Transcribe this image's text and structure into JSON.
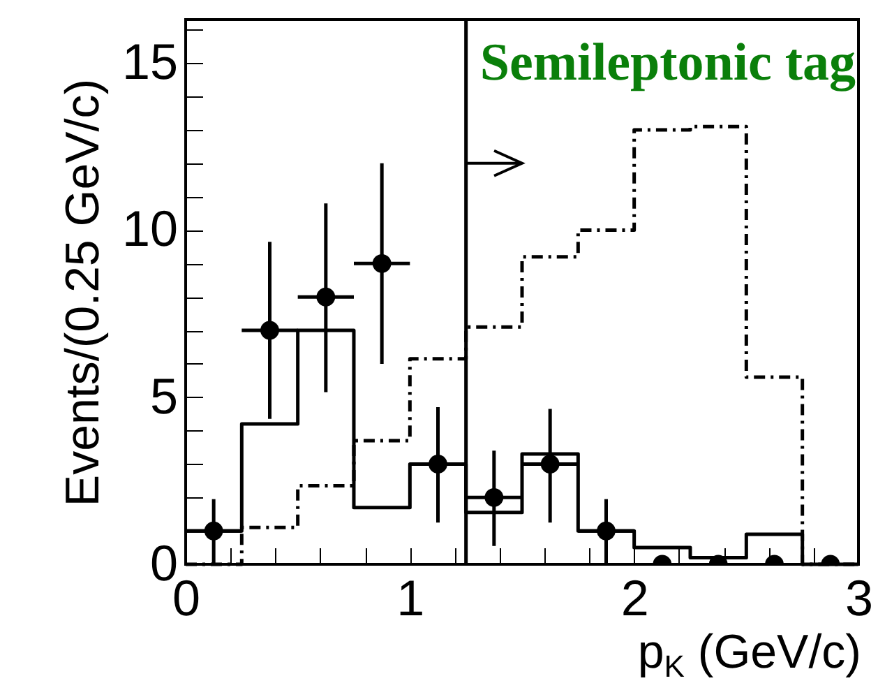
{
  "chart_data": {
    "type": "histogram",
    "title": "Semileptonic tag",
    "xlabel": "p$_{K}$ (GeV/c)",
    "ylabel": "Events/(0.25 GeV/c)",
    "bins": [
      0,
      0.25,
      0.5,
      0.75,
      1,
      1.25,
      1.5,
      1.75,
      2,
      2.25,
      2.5,
      2.75,
      3
    ],
    "series": [
      {
        "type": "histogram",
        "color": "#000000",
        "line_style": "solid",
        "values": [
          1,
          4.2,
          7,
          1.7,
          3,
          1.55,
          3.3,
          1,
          0.5,
          0.2,
          0.9,
          0
        ]
      },
      {
        "type": "histogram",
        "color": "#000000",
        "line_style": "dashed",
        "values": [
          0,
          1.1,
          2.35,
          3.7,
          6.15,
          7.1,
          9.2,
          10,
          13,
          13.1,
          5.6,
          0
        ]
      },
      {
        "type": "scatter",
        "color": "#000000",
        "marker": "circle",
        "x": [
          0.125,
          0.375,
          0.625,
          0.875,
          1.125,
          1.375,
          1.625,
          1.875,
          2.125,
          2.375,
          2.625,
          2.875
        ],
        "values": [
          1,
          7,
          8,
          9,
          3,
          2,
          3,
          1,
          0,
          0,
          0,
          0
        ],
        "errors": [
          [
            0,
            1.95
          ],
          [
            4.35,
            9.65
          ],
          [
            5.15,
            10.8
          ],
          [
            6,
            12
          ],
          [
            1.25,
            4.7
          ],
          [
            0.55,
            3.4
          ],
          [
            1.25,
            4.65
          ],
          [
            0,
            1.95
          ],
          null,
          null,
          null,
          null
        ],
        "xerrors": [
          0.125,
          0.125,
          0.125,
          0.125,
          0.125,
          0.125,
          0.125,
          0.125,
          null,
          null,
          null,
          null
        ]
      }
    ],
    "ref_lines": [
      {
        "axis": "x",
        "value": 1.25,
        "color": "#000000"
      }
    ],
    "xlim": [
      0,
      3
    ],
    "ylim": [
      0,
      16.3
    ],
    "xticks": [
      0,
      {
        "value": 0.2,
        "label": null
      },
      {
        "value": 0.4,
        "label": null
      },
      {
        "value": 0.6,
        "label": null
      },
      {
        "value": 0.8,
        "label": null
      },
      1,
      {
        "value": 1.2,
        "label": null
      },
      {
        "value": 1.4,
        "label": null
      },
      {
        "value": 1.6,
        "label": null
      },
      {
        "value": 1.8,
        "label": null
      },
      2,
      {
        "value": 2.2,
        "label": null
      },
      {
        "value": 2.4,
        "label": null
      },
      {
        "value": 2.6,
        "label": null
      },
      {
        "value": 2.8,
        "label": null
      },
      3
    ],
    "yticks": [
      0,
      {
        "value": 1,
        "label": null
      },
      {
        "value": 2,
        "label": null
      },
      {
        "value": 3,
        "label": null
      },
      {
        "value": 4,
        "label": null
      },
      5,
      {
        "value": 6,
        "label": null
      },
      {
        "value": 7,
        "label": null
      },
      {
        "value": 8,
        "label": null
      },
      {
        "value": 9,
        "label": null
      },
      10,
      {
        "value": 11,
        "label": null
      },
      {
        "value": 12,
        "label": null
      },
      {
        "value": 13,
        "label": null
      },
      {
        "value": 14,
        "label": null
      },
      15,
      {
        "value": 16,
        "label": null
      }
    ],
    "grid": false
  }
}
